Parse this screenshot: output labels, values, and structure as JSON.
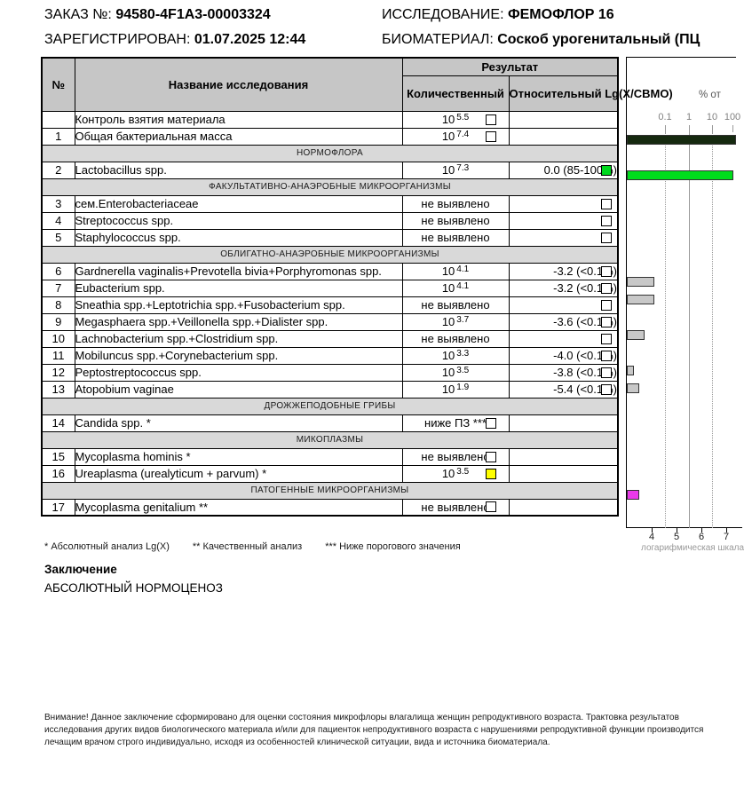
{
  "header": {
    "order_label": "ЗАКАЗ №:",
    "order_value": "94580-4F1A3-00003324",
    "registered_label": "ЗАРЕГИСТРИРОВАН:",
    "registered_value": "01.07.2025 12:44",
    "study_label": "ИССЛЕДОВАНИЕ:",
    "study_value": "ФЕМОФЛОР 16",
    "biomaterial_label": "БИОМАТЕРИАЛ:",
    "biomaterial_value": "Соскоб урогенитальный (ПЦ"
  },
  "table": {
    "col_num": "№",
    "col_name": "Название исследования",
    "col_result": "Результат",
    "col_quant": "Количественный",
    "col_rel": "Относительный Lg(X/СВМО)",
    "rows": [
      {
        "kind": "data",
        "num": "",
        "name": "Контроль взятия материала",
        "quant": {
          "pow": [
            "10",
            "5.5"
          ],
          "check": "empty"
        },
        "rel": null
      },
      {
        "kind": "data",
        "num": "1",
        "name": "Общая бактериальная масса",
        "quant": {
          "pow": [
            "10",
            "7.4"
          ],
          "check": "empty"
        },
        "rel": null
      },
      {
        "kind": "section",
        "label": "НОРМОФЛОРА"
      },
      {
        "kind": "data",
        "num": "2",
        "name": "Lactobacillus spp.",
        "quant": {
          "pow": [
            "10",
            "7.3"
          ]
        },
        "rel": {
          "text": "0.0 (85-100%)",
          "check": "green"
        }
      },
      {
        "kind": "section",
        "label": "ФАКУЛЬТАТИВНО-АНАЭРОБНЫЕ МИКРООРГАНИЗМЫ"
      },
      {
        "kind": "data",
        "num": "3",
        "name": "сем.Enterobacteriaceae",
        "quant": {
          "text": "не выявлено"
        },
        "rel": {
          "text": "",
          "check": "empty"
        }
      },
      {
        "kind": "data",
        "num": "4",
        "name": "Streptococcus spp.",
        "quant": {
          "text": "не выявлено"
        },
        "rel": {
          "text": "",
          "check": "empty"
        }
      },
      {
        "kind": "data",
        "num": "5",
        "name": "Staphylococcus spp.",
        "quant": {
          "text": "не выявлено"
        },
        "rel": {
          "text": "",
          "check": "empty"
        }
      },
      {
        "kind": "section",
        "label": "ОБЛИГАТНО-АНАЭРОБНЫЕ МИКРООРГАНИЗМЫ"
      },
      {
        "kind": "data",
        "num": "6",
        "name": "Gardnerella vaginalis+Prevotella bivia+Porphyromonas spp.",
        "quant": {
          "pow": [
            "10",
            "4.1"
          ]
        },
        "rel": {
          "text": "-3.2 (<0.1%)",
          "check": "empty"
        }
      },
      {
        "kind": "data",
        "num": "7",
        "name": "Eubacterium spp.",
        "quant": {
          "pow": [
            "10",
            "4.1"
          ]
        },
        "rel": {
          "text": "-3.2 (<0.1%)",
          "check": "empty"
        }
      },
      {
        "kind": "data",
        "num": "8",
        "name": "Sneathia spp.+Leptotrichia spp.+Fusobacterium spp.",
        "quant": {
          "text": "не выявлено"
        },
        "rel": {
          "text": "",
          "check": "empty"
        }
      },
      {
        "kind": "data",
        "num": "9",
        "name": "Megasphaera spp.+Veillonella spp.+Dialister spp.",
        "quant": {
          "pow": [
            "10",
            "3.7"
          ]
        },
        "rel": {
          "text": "-3.6 (<0.1%)",
          "check": "empty"
        }
      },
      {
        "kind": "data",
        "num": "10",
        "name": "Lachnobacterium spp.+Clostridium spp.",
        "quant": {
          "text": "не выявлено"
        },
        "rel": {
          "text": "",
          "check": "empty"
        }
      },
      {
        "kind": "data",
        "num": "11",
        "name": "Mobiluncus spp.+Corynebacterium spp.",
        "quant": {
          "pow": [
            "10",
            "3.3"
          ]
        },
        "rel": {
          "text": "-4.0 (<0.1%)",
          "check": "empty"
        }
      },
      {
        "kind": "data",
        "num": "12",
        "name": "Peptostreptococcus spp.",
        "quant": {
          "pow": [
            "10",
            "3.5"
          ]
        },
        "rel": {
          "text": "-3.8 (<0.1%)",
          "check": "empty"
        }
      },
      {
        "kind": "data",
        "num": "13",
        "name": "Atopobium vaginae",
        "quant": {
          "pow": [
            "10",
            "1.9"
          ]
        },
        "rel": {
          "text": "-5.4 (<0.1%)",
          "check": "empty"
        }
      },
      {
        "kind": "section",
        "label": "ДРОЖЖЕПОДОБНЫЕ ГРИБЫ"
      },
      {
        "kind": "data",
        "num": "14",
        "name": "Candida spp. *",
        "quant": {
          "text": "ниже ПЗ ***",
          "check": "empty"
        },
        "rel": null
      },
      {
        "kind": "section",
        "label": "МИКОПЛАЗМЫ"
      },
      {
        "kind": "data",
        "num": "15",
        "name": "Mycoplasma hominis *",
        "quant": {
          "text": "не выявлено",
          "check": "empty"
        },
        "rel": null
      },
      {
        "kind": "data",
        "num": "16",
        "name": "Ureaplasma (urealyticum + parvum) *",
        "quant": {
          "pow": [
            "10",
            "3.5"
          ],
          "check": "yellow"
        },
        "rel": null
      },
      {
        "kind": "section",
        "label": "ПАТОГЕННЫЕ МИКРООРГАНИЗМЫ"
      },
      {
        "kind": "data",
        "num": "17",
        "name": "Mycoplasma genitalium **",
        "quant": {
          "text": "не выявлено",
          "check": "empty"
        },
        "rel": null
      }
    ]
  },
  "footnotes": [
    "*  Абсолютный анализ Lg(X)",
    "**  Качественный анализ",
    "***  Ниже порогового значения"
  ],
  "conclusion": {
    "title": "Заключение",
    "text": "АБСОЛЮТНЫЙ НОРМОЦЕНОЗ"
  },
  "warning": "Внимание! Данное заключение сформировано для оценки состояния микрофлоры влагалища женщин репродуктивного возраста. Трактовка результатов исследования других видов биологического материала и/или для пациенток непродуктивного возраста с нарушениями репродуктивной функции производится лечащим врачом строго индивидуально, исходя из особенностей клинической ситуации, вида и источника биоматериала.",
  "status_colors": {
    "normal_green": "#00d91e",
    "conditional_yellow": "#ffff00",
    "obm_dark": "#15290f",
    "lacto_green": "#00dd1c",
    "anaerobe_gray": "#c8c8c8",
    "ureaplasma_magenta": "#e93ae9"
  },
  "chart_data": {
    "type": "bar",
    "orientation": "horizontal",
    "x_scale": "log10",
    "xlim_lg": [
      3,
      8
    ],
    "top_axis": {
      "title": "% от",
      "tick_labels": [
        "0.1",
        "1",
        "10",
        "100"
      ]
    },
    "bottom_axis": {
      "title": "логарифмическая шкала",
      "tick_labels": [
        "4",
        "5",
        "6",
        "7"
      ]
    },
    "gridlines": [
      {
        "percent_label": "0.1",
        "style": "dotted"
      },
      {
        "percent_label": "1",
        "style": "solid"
      },
      {
        "percent_label": "10",
        "style": "dotted"
      }
    ],
    "bars": [
      {
        "name": "Общая бактериальная масса",
        "lg_value": 7.4,
        "color": "#15290f",
        "table_row_index": 1
      },
      {
        "name": "Lactobacillus spp.",
        "lg_value": 7.3,
        "color": "#00dd1c",
        "table_row_index": 3
      },
      {
        "name": "Gardnerella vaginalis+Prevotella bivia+Porphyromonas spp.",
        "lg_value": 4.1,
        "color": "#c8c8c8",
        "table_row_index": 9
      },
      {
        "name": "Eubacterium spp.",
        "lg_value": 4.1,
        "color": "#c8c8c8",
        "table_row_index": 10
      },
      {
        "name": "Megasphaera spp.+Veillonella spp.+Dialister spp.",
        "lg_value": 3.7,
        "color": "#c8c8c8",
        "table_row_index": 12
      },
      {
        "name": "Mobiluncus spp.+Corynebacterium spp.",
        "lg_value": 3.3,
        "color": "#c8c8c8",
        "table_row_index": 14
      },
      {
        "name": "Peptostreptococcus spp.",
        "lg_value": 3.5,
        "color": "#c8c8c8",
        "table_row_index": 15
      },
      {
        "name": "Ureaplasma (urealyticum + parvum)",
        "lg_value": 3.5,
        "color": "#e93ae9",
        "table_row_index": 21
      }
    ]
  }
}
